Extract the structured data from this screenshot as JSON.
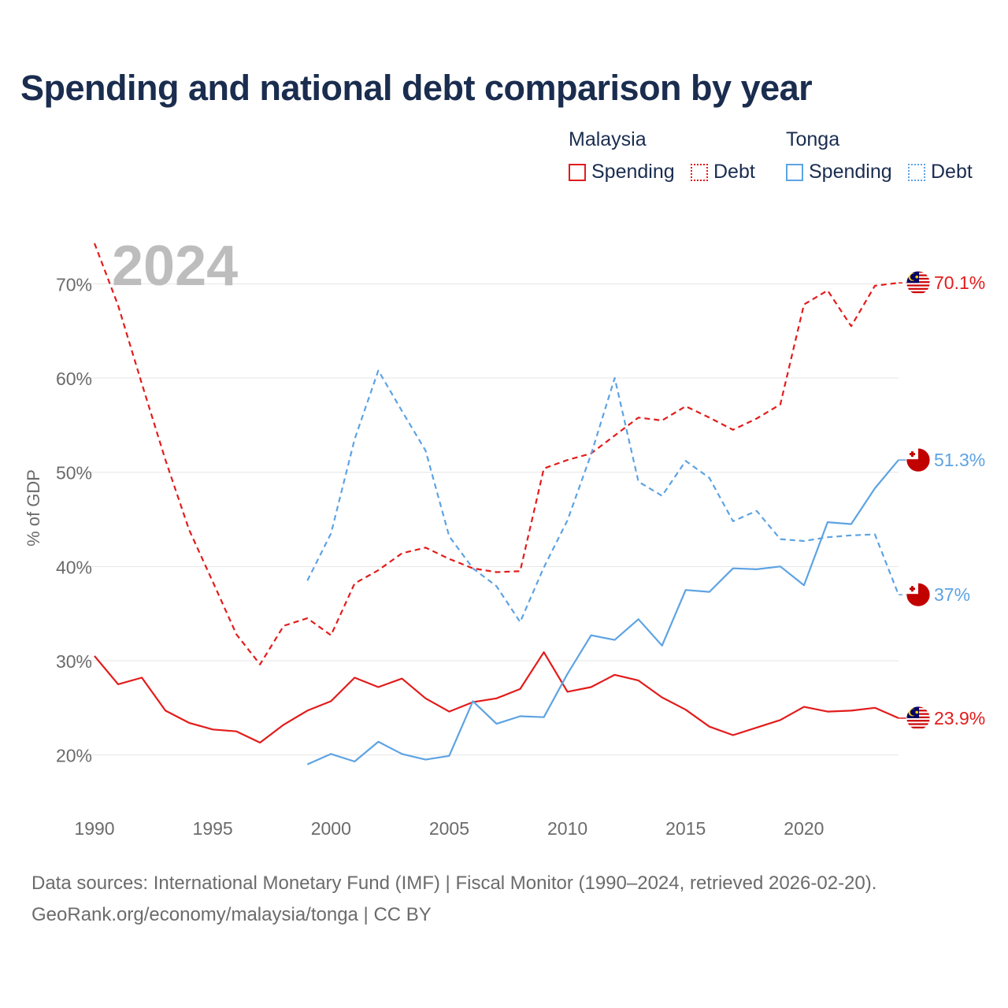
{
  "title": "Spending and national debt comparison by year",
  "legend": {
    "groups": [
      {
        "name": "Malaysia",
        "color": "#e31b1b",
        "items": [
          "Spending",
          "Debt"
        ]
      },
      {
        "name": "Tonga",
        "color": "#5da3e3",
        "items": [
          "Spending",
          "Debt"
        ]
      }
    ]
  },
  "year_watermark": "2024",
  "footer": {
    "line1": "Data sources: International Monetary Fund (IMF) | Fiscal Monitor (1990–2024, retrieved 2026-02-20).",
    "line2": "GeoRank.org/economy/malaysia/tonga | CC BY"
  },
  "chart_data": {
    "type": "line",
    "title": "Spending and national debt comparison by year",
    "xlabel": "",
    "ylabel": "% of GDP",
    "xlim": [
      1990,
      2024
    ],
    "ylim": [
      15,
      75
    ],
    "x_ticks": [
      1990,
      1995,
      2000,
      2005,
      2010,
      2015,
      2020
    ],
    "x_tick_labels": [
      "1990",
      "1995",
      "2000",
      "2005",
      "2010",
      "2015",
      "2020"
    ],
    "y_ticks": [
      20,
      30,
      40,
      50,
      60,
      70
    ],
    "y_tick_labels": [
      "20%",
      "30%",
      "40%",
      "50%",
      "60%",
      "70%"
    ],
    "grid": true,
    "series": [
      {
        "name": "Malaysia Spending",
        "country": "Malaysia",
        "style": "solid",
        "color": "#e31b1b",
        "end_label": "23.9%",
        "flag": "malaysia",
        "x": [
          1990,
          1991,
          1992,
          1993,
          1994,
          1995,
          1996,
          1997,
          1998,
          1999,
          2000,
          2001,
          2002,
          2003,
          2004,
          2005,
          2006,
          2007,
          2008,
          2009,
          2010,
          2011,
          2012,
          2013,
          2014,
          2015,
          2016,
          2017,
          2018,
          2019,
          2020,
          2021,
          2022,
          2023,
          2024
        ],
        "values": [
          30.5,
          27.5,
          28.2,
          24.7,
          23.4,
          22.7,
          22.5,
          21.3,
          23.2,
          24.7,
          25.7,
          28.2,
          27.2,
          28.1,
          26.0,
          24.6,
          25.6,
          26.0,
          27.0,
          30.9,
          26.7,
          27.2,
          28.5,
          27.9,
          26.1,
          24.8,
          23.0,
          22.1,
          22.9,
          23.7,
          25.1,
          24.6,
          24.7,
          25.0,
          23.9
        ]
      },
      {
        "name": "Malaysia Debt",
        "country": "Malaysia",
        "style": "dashed",
        "color": "#e31b1b",
        "end_label": "70.1%",
        "flag": "malaysia",
        "x": [
          1990,
          1991,
          1992,
          1993,
          1994,
          1995,
          1996,
          1997,
          1998,
          1999,
          2000,
          2001,
          2002,
          2003,
          2004,
          2005,
          2006,
          2007,
          2008,
          2009,
          2010,
          2011,
          2012,
          2013,
          2014,
          2015,
          2016,
          2017,
          2018,
          2019,
          2020,
          2021,
          2022,
          2023,
          2024
        ],
        "values": [
          74.3,
          67.7,
          59.4,
          51.3,
          43.9,
          38.4,
          32.8,
          29.6,
          33.7,
          34.5,
          32.7,
          38.2,
          39.6,
          41.4,
          42.0,
          40.8,
          39.8,
          39.4,
          39.5,
          50.4,
          51.3,
          52.0,
          53.9,
          55.8,
          55.5,
          57.0,
          55.8,
          54.5,
          55.7,
          57.2,
          67.8,
          69.3,
          65.5,
          69.8,
          70.1
        ]
      },
      {
        "name": "Tonga Spending",
        "country": "Tonga",
        "style": "solid",
        "color": "#5da3e3",
        "end_label": "51.3%",
        "flag": "tonga",
        "x": [
          1999,
          2000,
          2001,
          2002,
          2003,
          2004,
          2005,
          2006,
          2007,
          2008,
          2009,
          2010,
          2011,
          2012,
          2013,
          2014,
          2015,
          2016,
          2017,
          2018,
          2019,
          2020,
          2021,
          2022,
          2023,
          2024
        ],
        "values": [
          19.0,
          20.1,
          19.3,
          21.4,
          20.1,
          19.5,
          19.9,
          25.7,
          23.3,
          24.1,
          24.0,
          28.6,
          32.7,
          32.2,
          34.4,
          31.6,
          37.5,
          37.3,
          39.8,
          39.7,
          40.0,
          38.0,
          44.7,
          44.5,
          48.3,
          51.3
        ]
      },
      {
        "name": "Tonga Debt",
        "country": "Tonga",
        "style": "dashed",
        "color": "#5da3e3",
        "end_label": "37%",
        "flag": "tonga",
        "x": [
          1999,
          2000,
          2001,
          2002,
          2003,
          2004,
          2005,
          2006,
          2007,
          2008,
          2009,
          2010,
          2011,
          2012,
          2013,
          2014,
          2015,
          2016,
          2017,
          2018,
          2019,
          2020,
          2021,
          2022,
          2023,
          2024
        ],
        "values": [
          38.5,
          43.5,
          53.5,
          60.8,
          56.5,
          52.3,
          43.2,
          39.8,
          37.9,
          34.1,
          39.9,
          44.9,
          51.9,
          60.0,
          49.0,
          47.5,
          51.2,
          49.4,
          44.8,
          45.9,
          42.9,
          42.7,
          43.1,
          43.3,
          43.4,
          37.0
        ]
      }
    ]
  }
}
